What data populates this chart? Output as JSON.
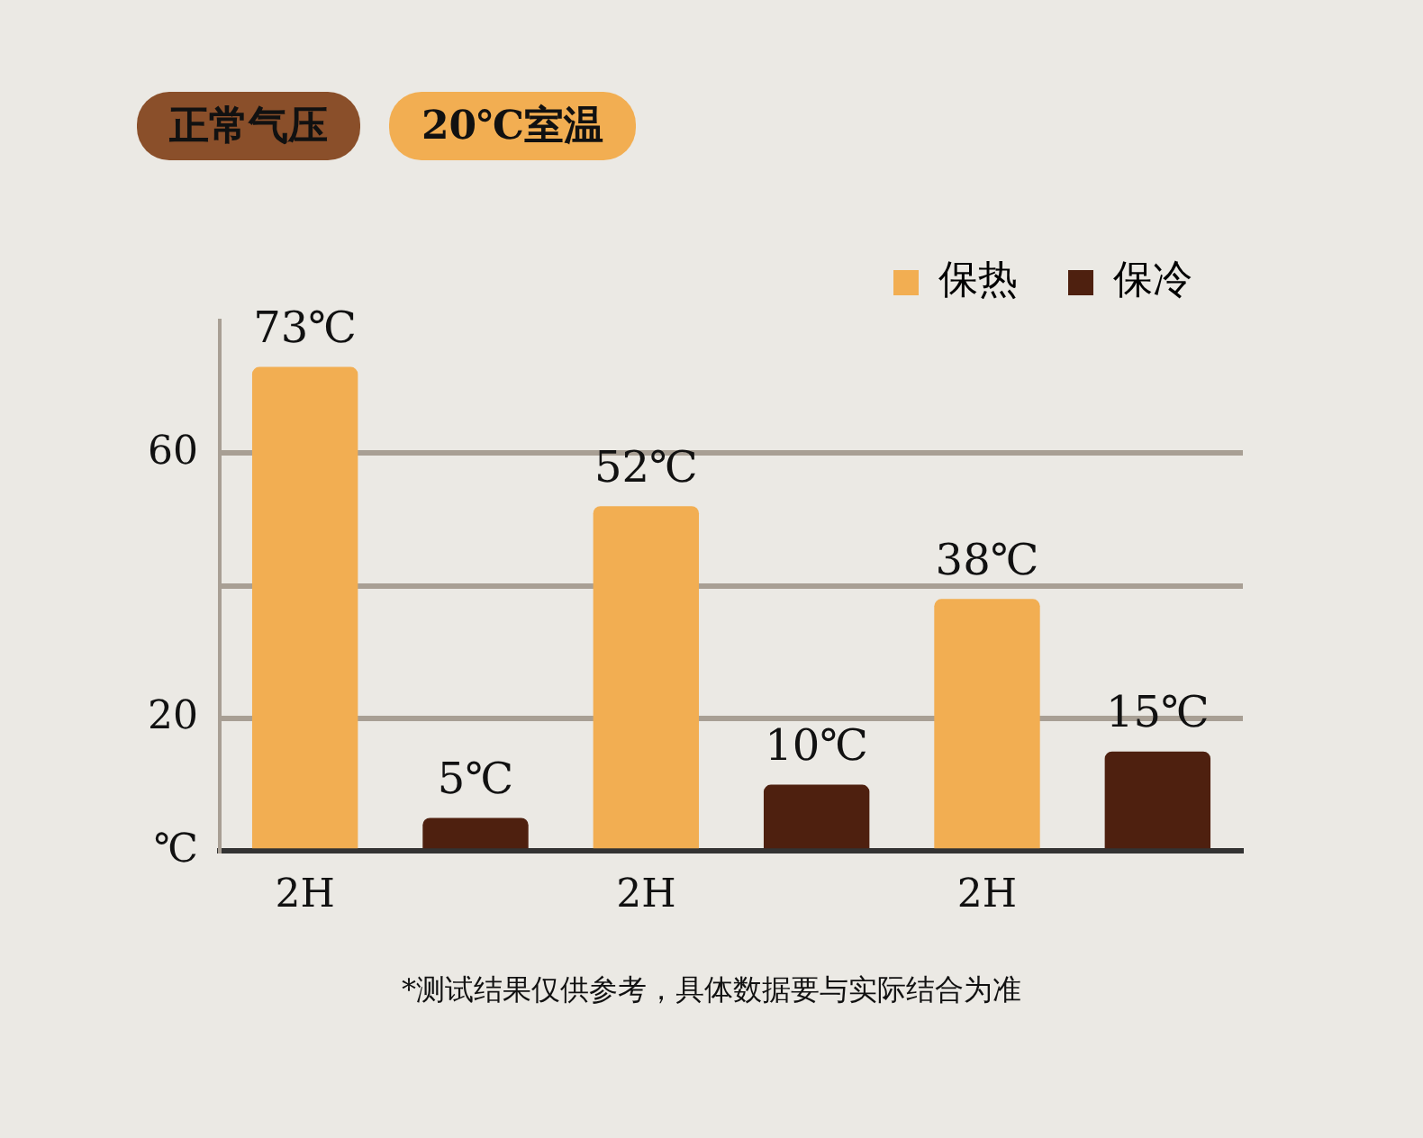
{
  "chart_data": {
    "type": "bar",
    "categories": [
      "2H",
      null,
      "2H",
      null,
      "2H",
      null
    ],
    "series": [
      {
        "name": "保热",
        "color": "#f2ae52",
        "values": [
          73,
          null,
          52,
          null,
          38,
          null
        ],
        "value_labels": [
          "73℃",
          null,
          "52℃",
          null,
          "38℃",
          null
        ]
      },
      {
        "name": "保冷",
        "color": "#4e200f",
        "values": [
          null,
          5,
          null,
          10,
          null,
          15
        ],
        "value_labels": [
          null,
          "5℃",
          null,
          "10℃",
          null,
          "15℃"
        ]
      }
    ],
    "ylim": [
      0,
      80
    ],
    "yticks": [
      {
        "value": 0,
        "label": "℃"
      },
      20,
      {
        "value": 40,
        "label": null
      },
      60
    ],
    "grid": "y",
    "legend": "top right",
    "annotations": [
      "正常气压",
      "20℃室温",
      "*测试结果仅供参考，具体数据要与实际结合为准"
    ]
  }
}
